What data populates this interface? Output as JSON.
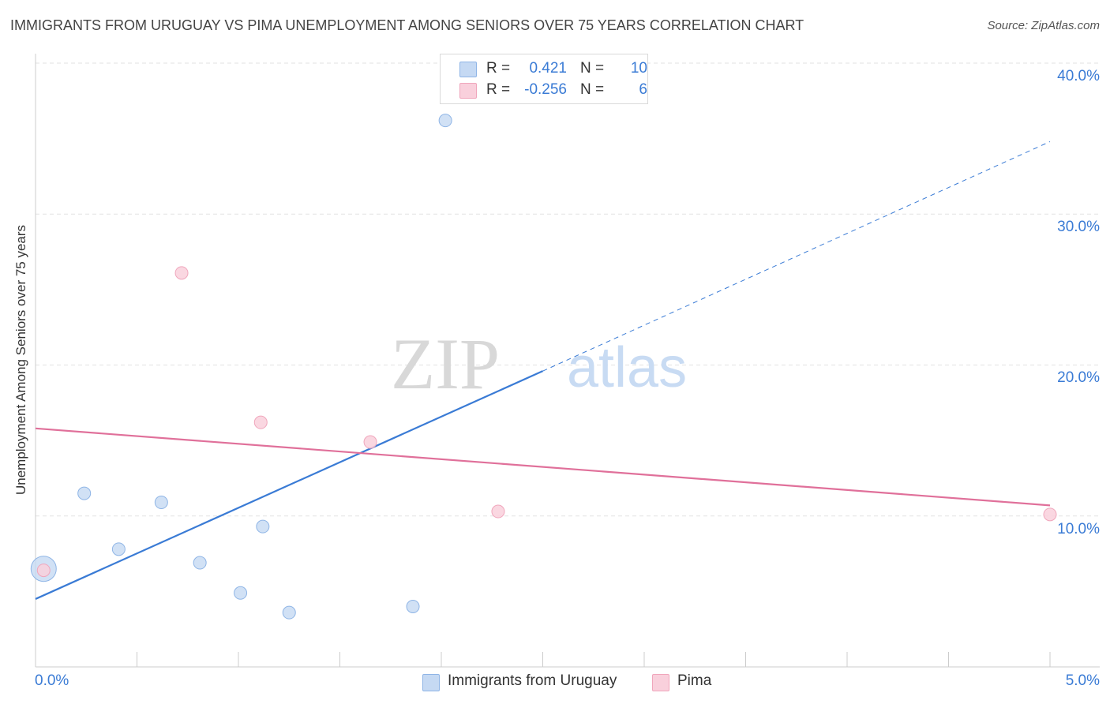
{
  "header": {
    "title": "IMMIGRANTS FROM URUGUAY VS PIMA UNEMPLOYMENT AMONG SENIORS OVER 75 YEARS CORRELATION CHART",
    "source": "Source: ZipAtlas.com"
  },
  "watermark": {
    "zip": "ZIP",
    "atlas": "atlas"
  },
  "legend": {
    "rows": [
      {
        "r_label": "R =",
        "r_value": "0.421",
        "n_label": "N =",
        "n_value": "10",
        "color": "#a9c8ee"
      },
      {
        "r_label": "R =",
        "r_value": "-0.256",
        "n_label": "N =",
        "n_value": "6",
        "color": "#f4b6c8"
      }
    ]
  },
  "bottom_legend": {
    "uruguay": "Immigrants from Uruguay",
    "pima": "Pima"
  },
  "chart_data": {
    "type": "scatter",
    "title": "IMMIGRANTS FROM URUGUAY VS PIMA UNEMPLOYMENT AMONG SENIORS OVER 75 YEARS CORRELATION CHART",
    "xlabel": "",
    "ylabel": "Unemployment Among Seniors over 75 years",
    "xlim": [
      0,
      5
    ],
    "ylim": [
      0,
      40
    ],
    "x_tick_labels": [
      "0.0%",
      "5.0%"
    ],
    "y_ticks": [
      10,
      20,
      30,
      40
    ],
    "y_tick_labels": [
      "10.0%",
      "20.0%",
      "30.0%",
      "40.0%"
    ],
    "grid": true,
    "series": [
      {
        "name": "Immigrants from Uruguay",
        "color": "#3a7bd5",
        "fill": "#c5d9f3",
        "stroke": "#8fb5e6",
        "points": [
          {
            "x": 0.04,
            "y": 6.5,
            "size": "large"
          },
          {
            "x": 0.24,
            "y": 11.5
          },
          {
            "x": 0.41,
            "y": 7.8
          },
          {
            "x": 0.62,
            "y": 10.9
          },
          {
            "x": 0.81,
            "y": 6.9
          },
          {
            "x": 1.01,
            "y": 4.9
          },
          {
            "x": 1.12,
            "y": 9.3
          },
          {
            "x": 1.25,
            "y": 3.6
          },
          {
            "x": 1.86,
            "y": 4.0
          },
          {
            "x": 2.02,
            "y": 36.2
          }
        ],
        "trend": {
          "x0": 0.0,
          "y0": 4.5,
          "x1": 2.5,
          "y1": 19.6,
          "x_dash_end": 5.0,
          "y_dash_end": 34.8
        }
      },
      {
        "name": "Pima",
        "color": "#e0709a",
        "fill": "#f9d0dc",
        "stroke": "#f0a6bc",
        "points": [
          {
            "x": 0.04,
            "y": 6.4
          },
          {
            "x": 0.72,
            "y": 26.1
          },
          {
            "x": 1.11,
            "y": 16.2
          },
          {
            "x": 1.65,
            "y": 14.9
          },
          {
            "x": 2.28,
            "y": 10.3
          },
          {
            "x": 5.0,
            "y": 10.1
          }
        ],
        "trend": {
          "x0": 0.0,
          "y0": 15.8,
          "x1": 5.0,
          "y1": 10.7
        }
      }
    ]
  }
}
